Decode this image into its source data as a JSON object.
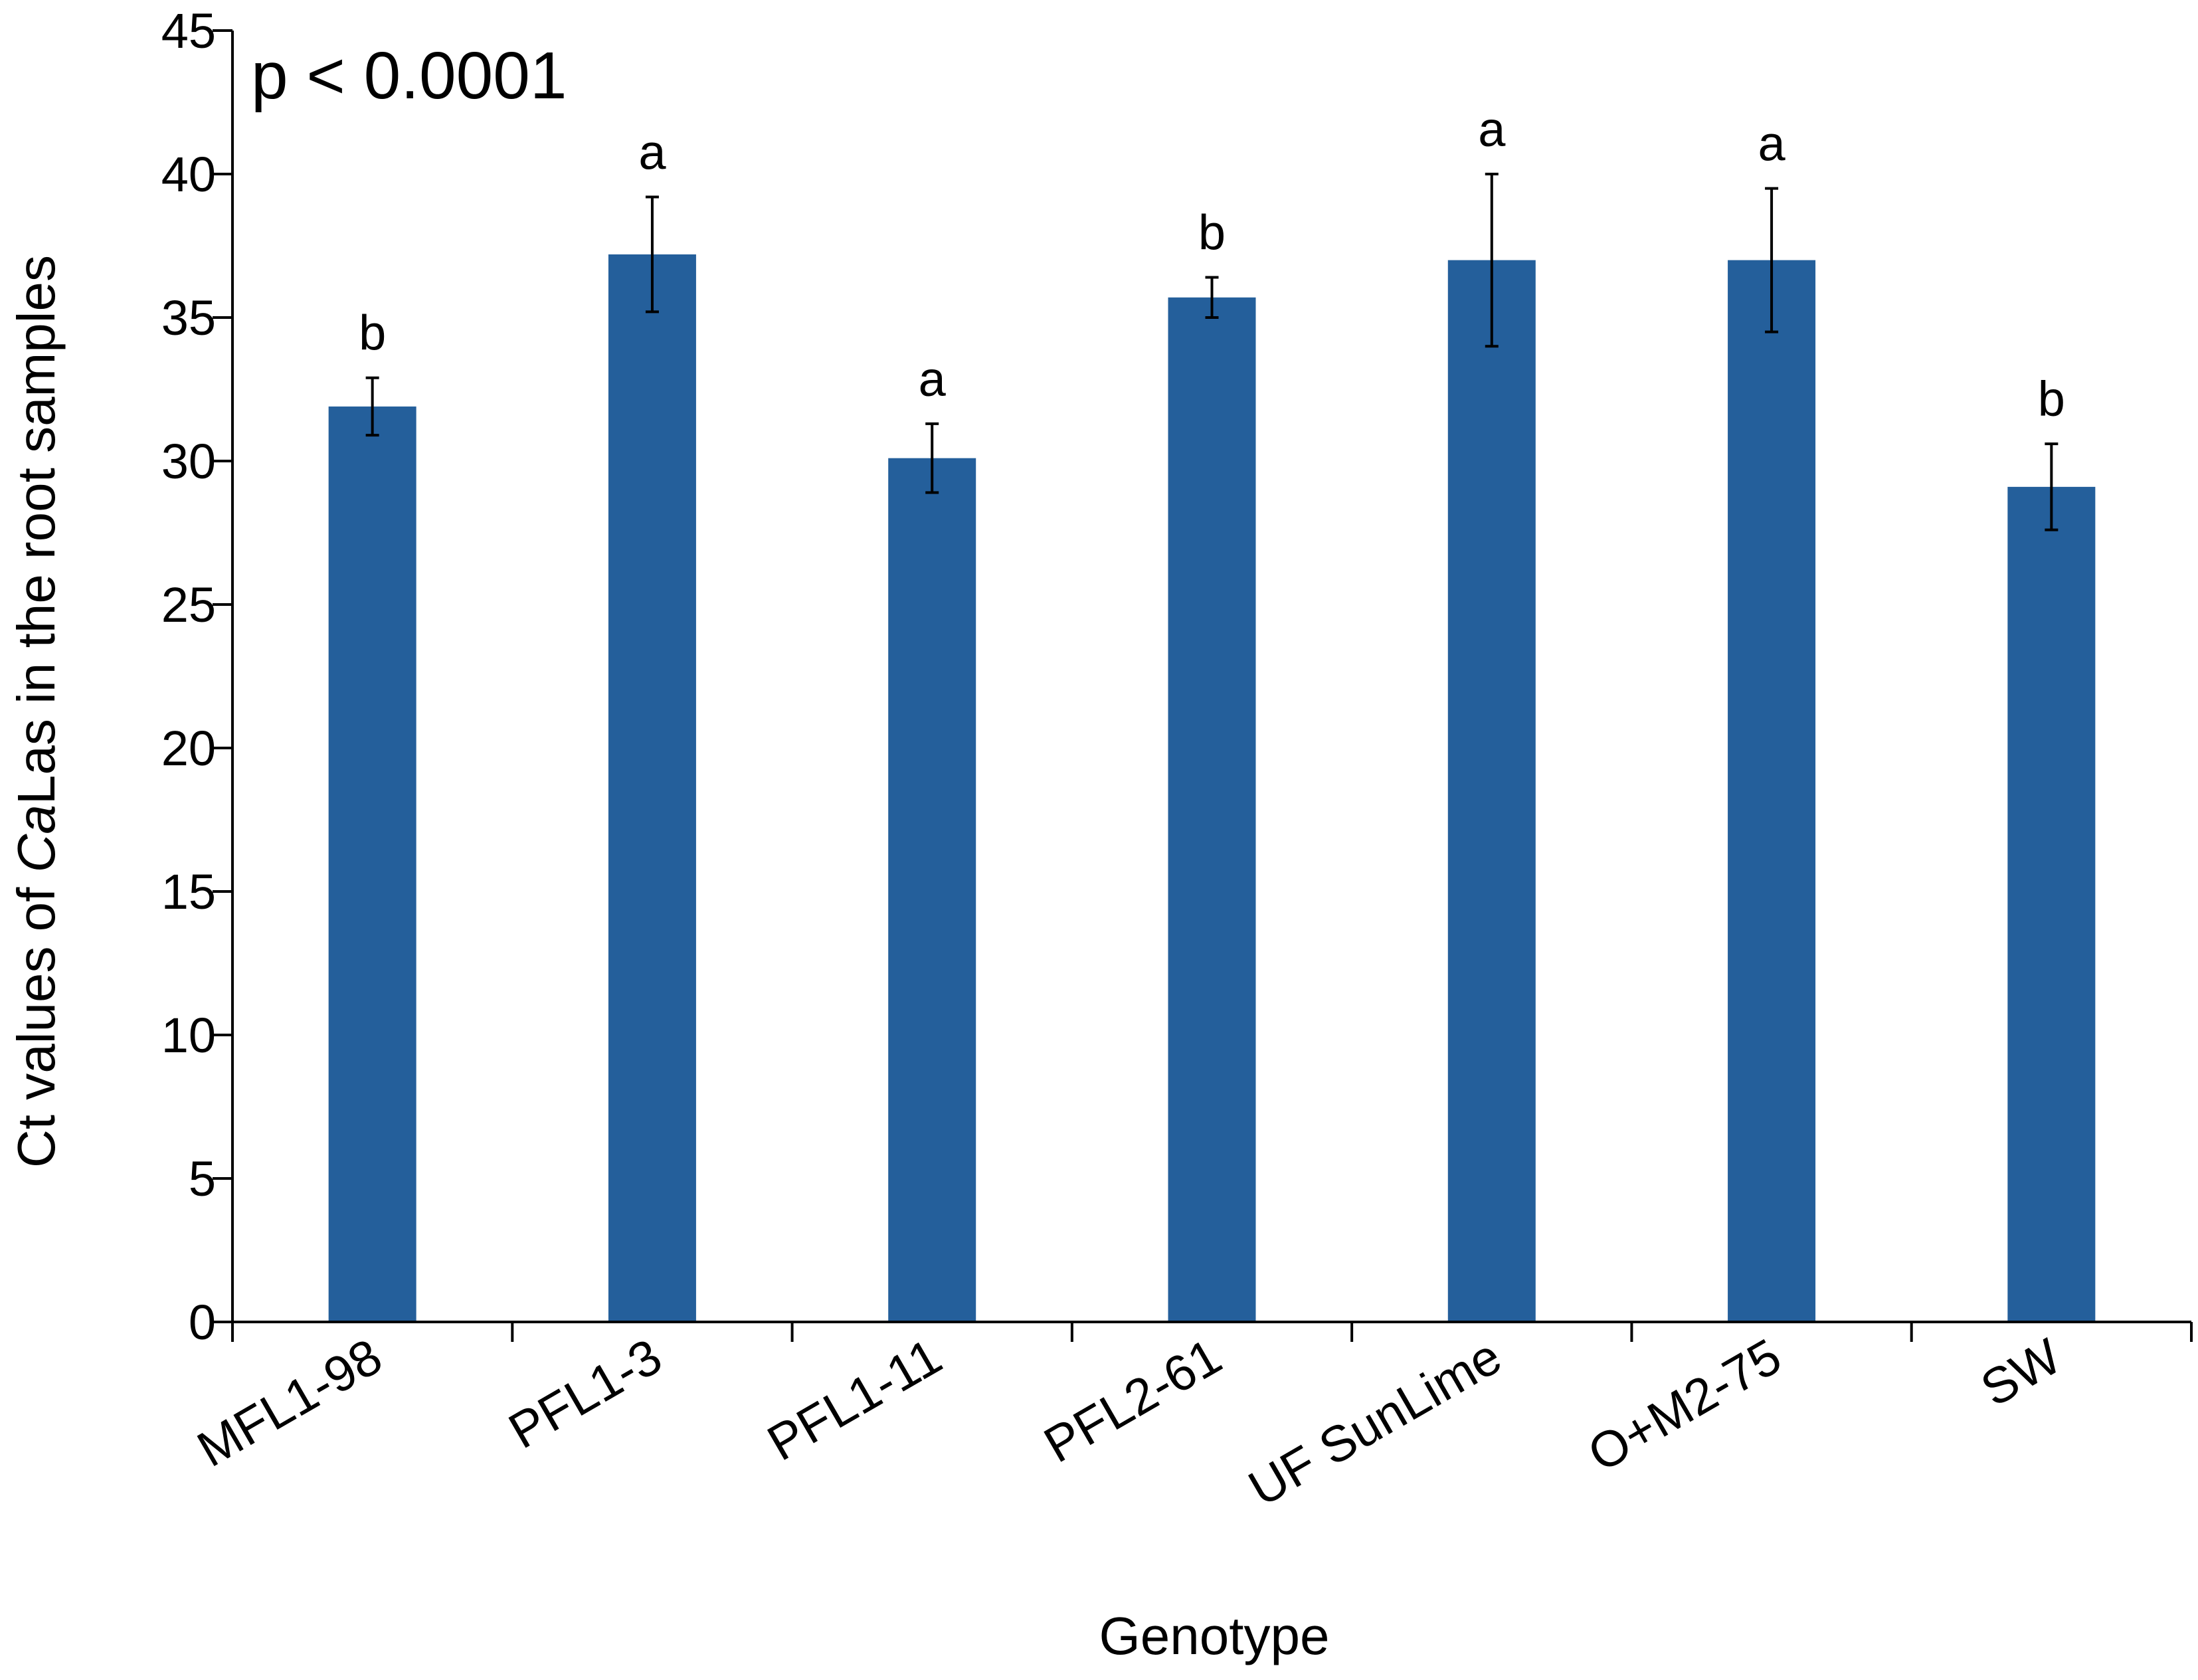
{
  "chart_data": {
    "type": "bar",
    "title": "",
    "annotation": "p < 0.0001",
    "xlabel": "Genotype",
    "ylabel": {
      "prefix": "Ct values of ",
      "italic": "Ca",
      "suffix": "Las in the root samples"
    },
    "ylim": [
      0,
      45
    ],
    "yticks": [
      0,
      5,
      10,
      15,
      20,
      25,
      30,
      35,
      40,
      45
    ],
    "grid": false,
    "categories": [
      "MFL1-98",
      "PFL1-3",
      "PFL1-11",
      "PFL2-61",
      "UF SunLime",
      "O+M2-75",
      "SW"
    ],
    "values": [
      31.9,
      37.2,
      30.1,
      35.7,
      37.0,
      37.0,
      29.1
    ],
    "error": [
      1.0,
      2.0,
      1.2,
      0.7,
      3.0,
      2.5,
      1.5
    ],
    "significance": [
      "b",
      "a",
      "a",
      "b",
      "a",
      "a",
      "b"
    ],
    "bar_color": "#245f9b"
  }
}
